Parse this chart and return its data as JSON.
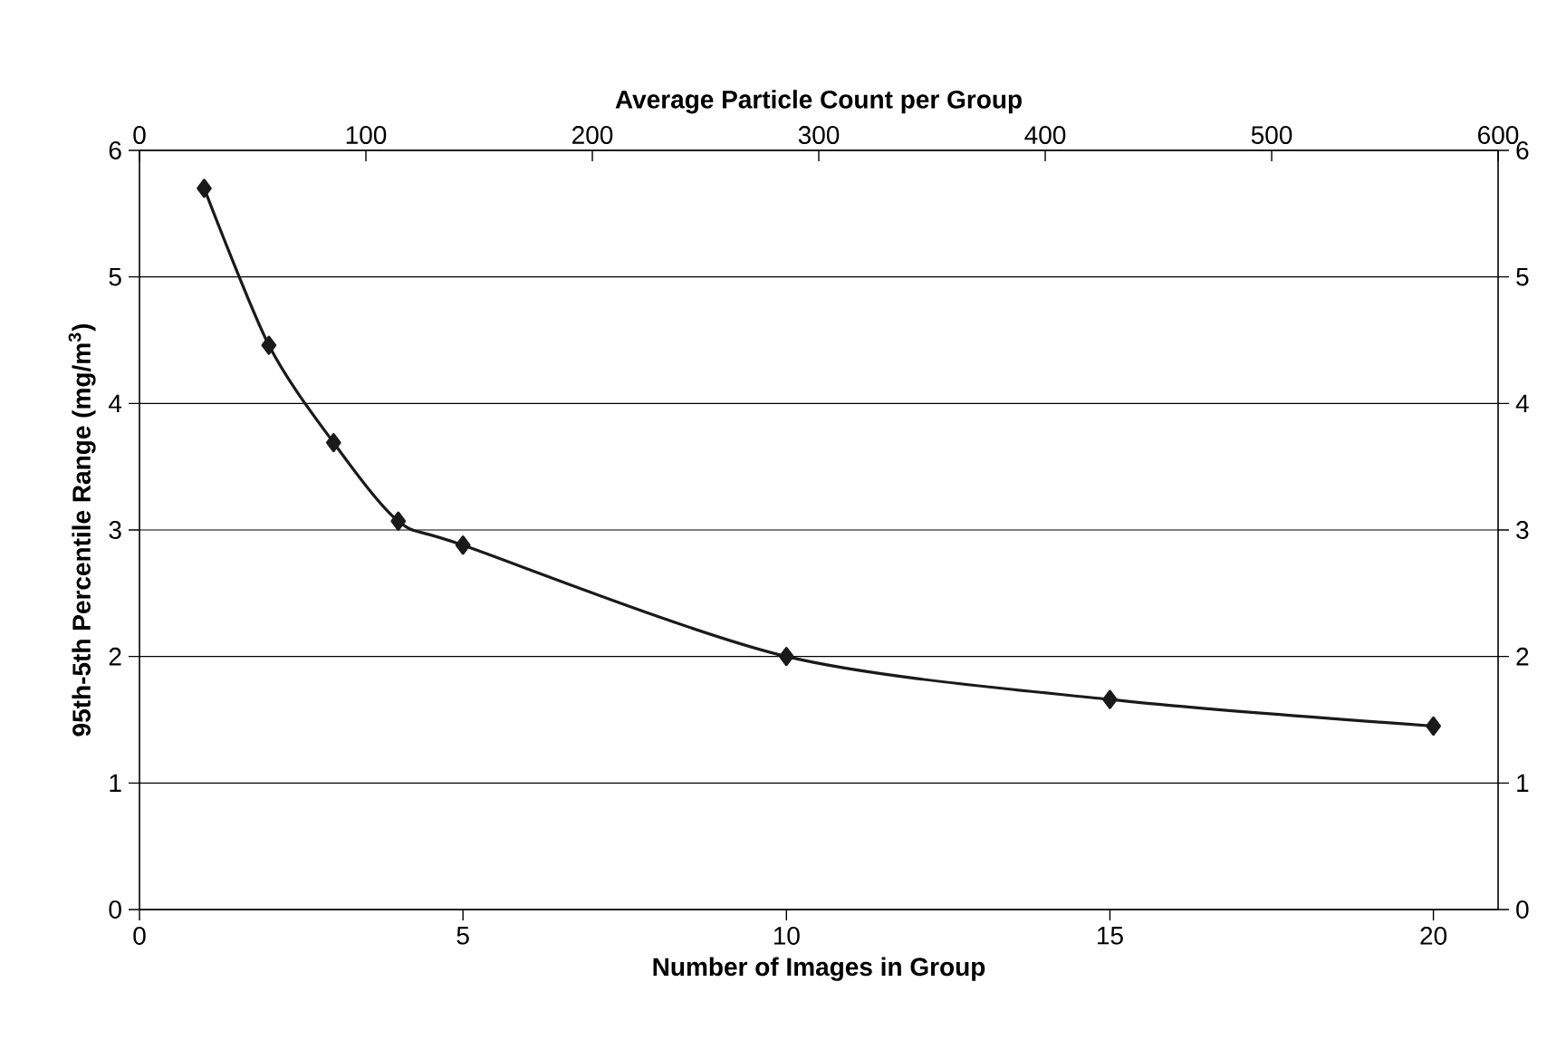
{
  "chart_data": {
    "type": "line",
    "xlabel": "Number of Images in Group",
    "x2label": "Average Particle Count per Group",
    "ylabel": "95th-5th Percentile Range (mg/m$^{3}$)",
    "x": [
      1,
      2,
      3,
      4,
      5,
      10,
      15,
      20
    ],
    "series": [
      {
        "color": "#1a1a1a",
        "values": [
          5.7,
          4.46,
          3.69,
          3.07,
          2.88,
          2.0,
          1.66,
          1.45
        ]
      }
    ],
    "xlim": [
      0,
      21
    ],
    "xticks": [
      0,
      5,
      10,
      15,
      20
    ],
    "x2lim": [
      0,
      600
    ],
    "x2ticks": [
      0,
      100,
      200,
      300,
      400,
      500,
      600
    ],
    "ylim": [
      0,
      6
    ],
    "yticks": [
      0,
      1,
      2,
      3,
      4,
      5,
      6
    ],
    "y2lim": [
      0,
      6
    ],
    "y2ticks": [
      0,
      1,
      2,
      3,
      4,
      5,
      6
    ],
    "grid": "y",
    "marker": "diamond",
    "line_style": "solid"
  }
}
